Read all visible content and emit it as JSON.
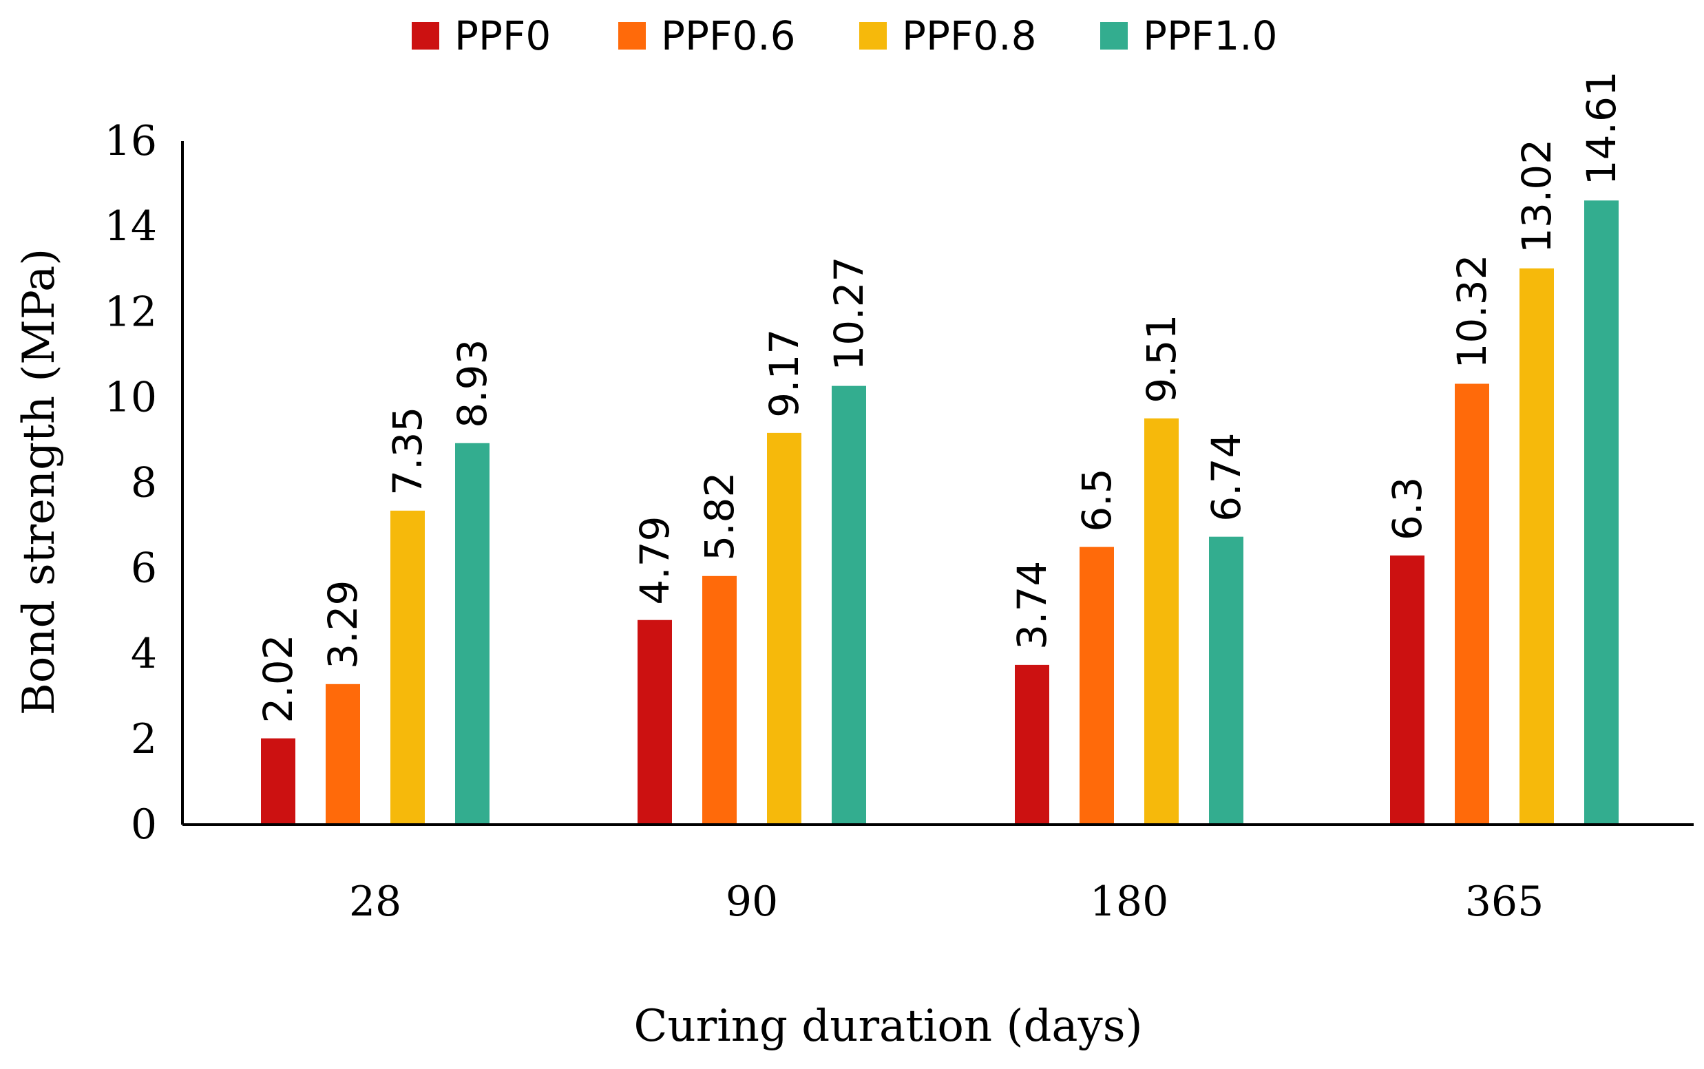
{
  "chart_data": {
    "type": "bar",
    "title": "",
    "xlabel": "Curing duration (days)",
    "ylabel": "Bond strength (MPa)",
    "categories": [
      "28",
      "90",
      "180",
      "365"
    ],
    "ylim": [
      0,
      16
    ],
    "yticks": [
      0,
      2,
      4,
      6,
      8,
      10,
      12,
      14,
      16
    ],
    "ytick_labels": [
      "0",
      "2",
      "4",
      "6",
      "8",
      "10",
      "12",
      "14",
      "16"
    ],
    "legend_position": "top",
    "grid": false,
    "series": [
      {
        "name": "PPF0",
        "color": "#cc1111",
        "values": [
          2.02,
          4.79,
          3.74,
          6.3
        ],
        "labels": [
          "2.02",
          "4.79",
          "3.74",
          "6.3"
        ]
      },
      {
        "name": "PPF0.6",
        "color": "#ff6a0a",
        "values": [
          3.29,
          5.82,
          6.5,
          10.32
        ],
        "labels": [
          "3.29",
          "5.82",
          "6.5",
          "10.32"
        ]
      },
      {
        "name": "PPF0.8",
        "color": "#f6b90b",
        "values": [
          7.35,
          9.17,
          9.51,
          13.02
        ],
        "labels": [
          "7.35",
          "9.17",
          "9.51",
          "13.02"
        ]
      },
      {
        "name": "PPF1.0",
        "color": "#33ad8f",
        "values": [
          8.93,
          10.27,
          6.74,
          14.61
        ],
        "labels": [
          "8.93",
          "10.27",
          "6.74",
          "14.61"
        ]
      }
    ]
  }
}
